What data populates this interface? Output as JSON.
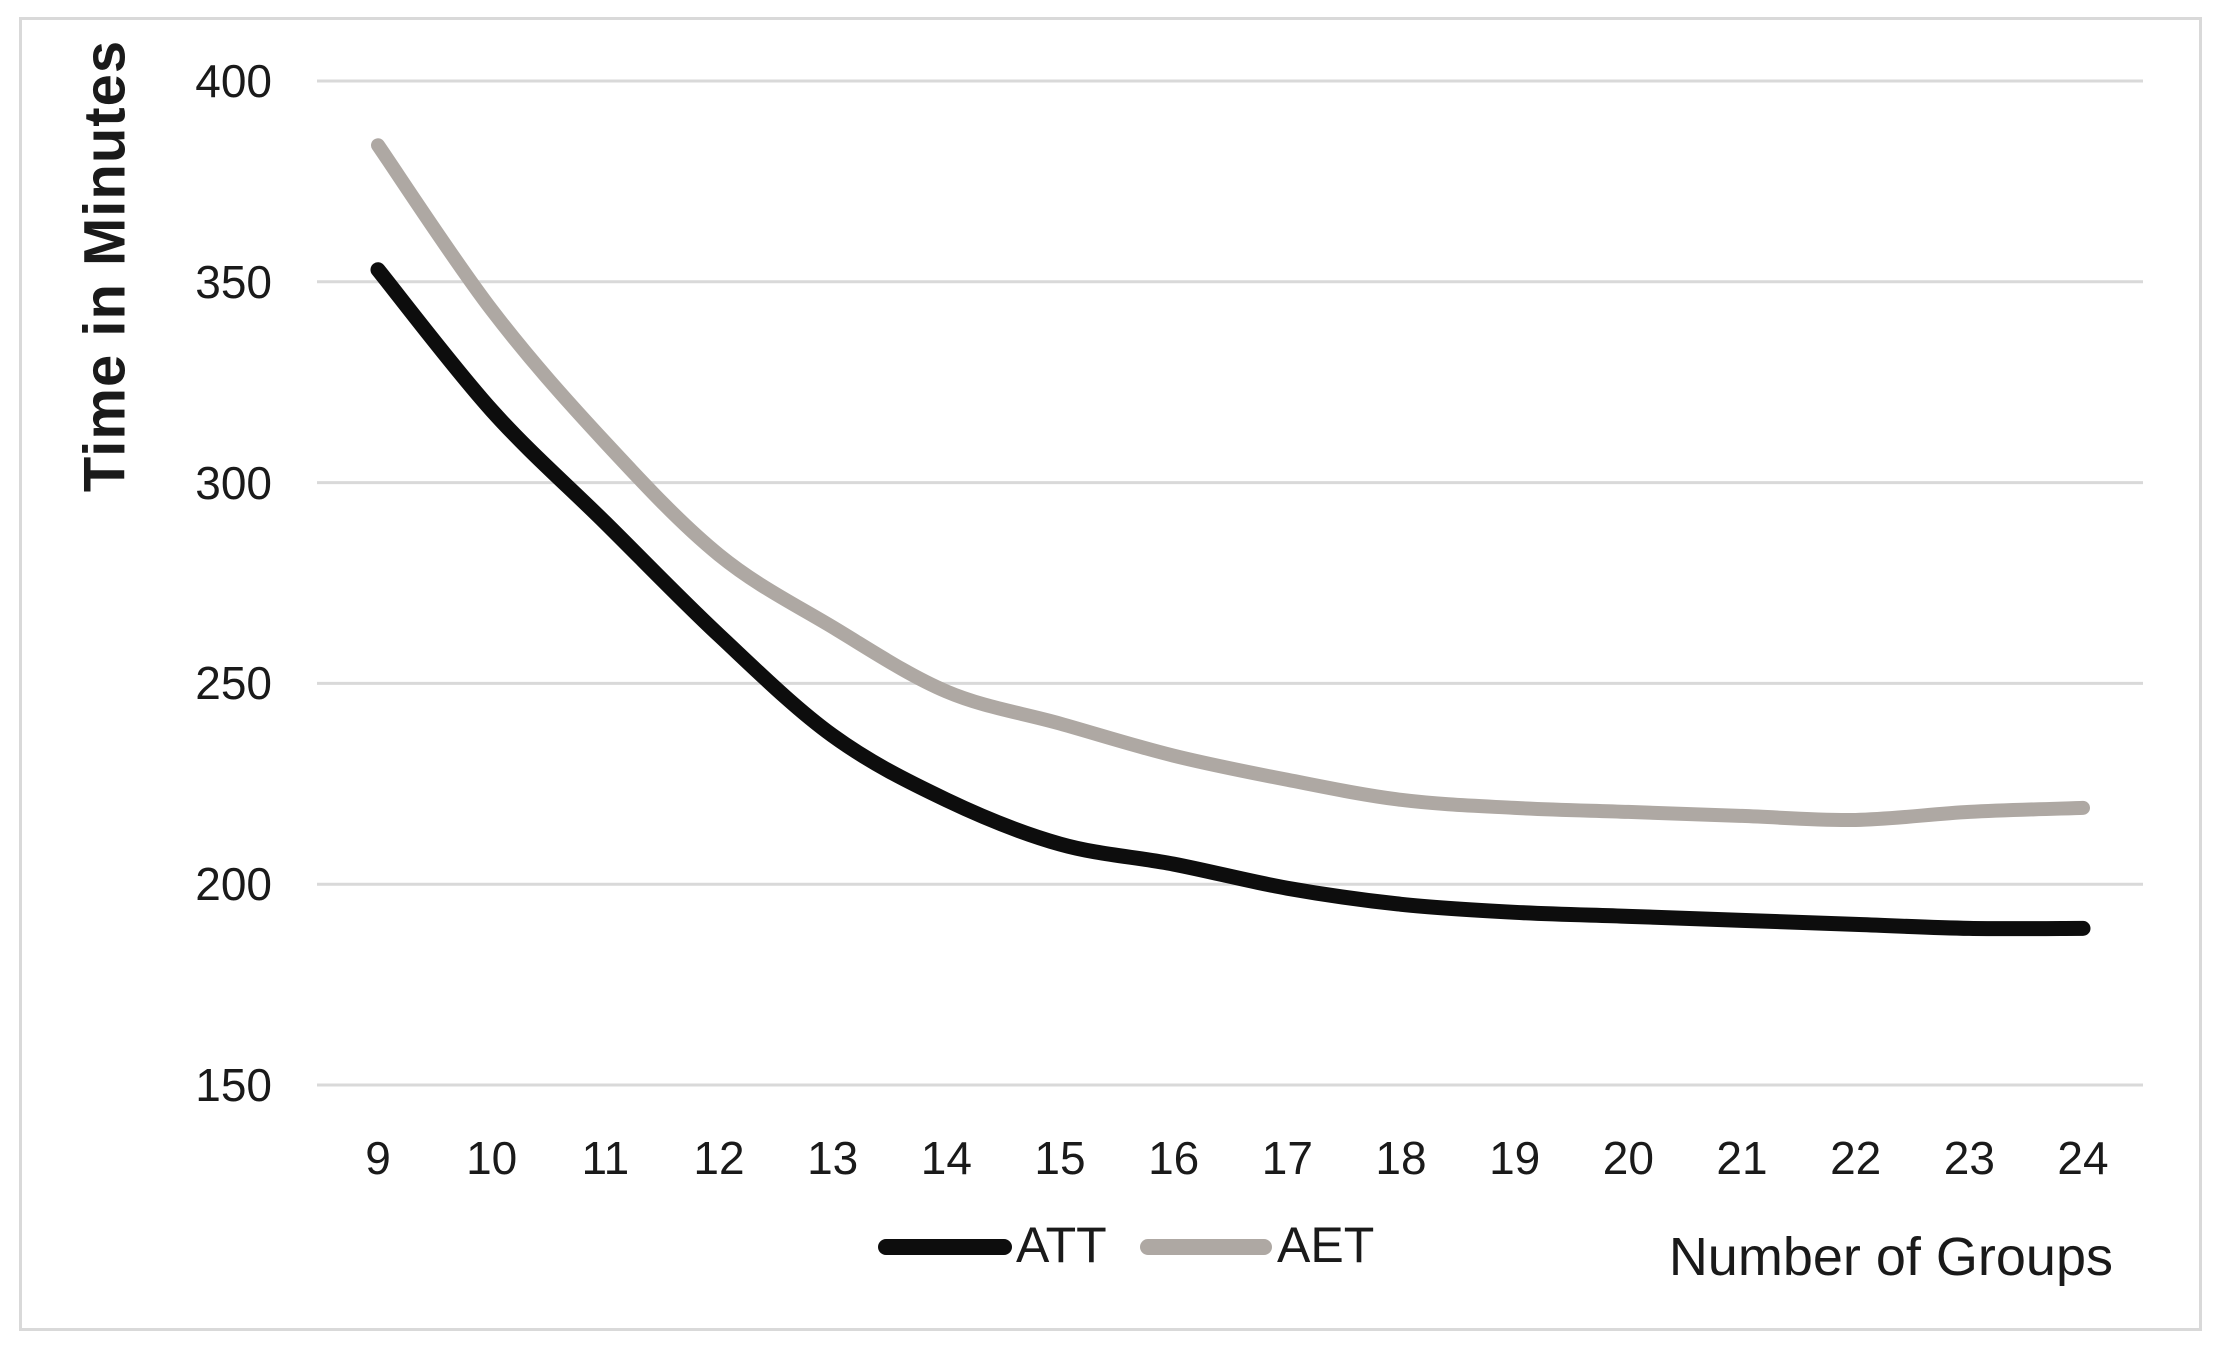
{
  "chart_data": {
    "type": "line",
    "title": "",
    "xlabel": "Number of Groups",
    "ylabel": "Time in Minutes",
    "x": [
      9,
      10,
      11,
      12,
      13,
      14,
      15,
      16,
      17,
      18,
      19,
      20,
      21,
      22,
      23,
      24
    ],
    "series": [
      {
        "name": "ATT",
        "color": "#0d0d0d",
        "stroke_width": 15,
        "values": [
          353,
          318,
          290,
          262,
          237,
          221,
          210,
          205,
          199,
          195,
          193,
          192,
          191,
          190,
          189,
          189
        ]
      },
      {
        "name": "AET",
        "color": "#aea8a3",
        "stroke_width": 14,
        "values": [
          384,
          343,
          310,
          282,
          264,
          248,
          240,
          232,
          226,
          221,
          219,
          218,
          217,
          216,
          218,
          219
        ]
      }
    ],
    "ylim": [
      150,
      400
    ],
    "yticks": [
      400,
      350,
      300,
      250,
      200,
      150
    ],
    "xticks": [
      9,
      10,
      11,
      12,
      13,
      14,
      15,
      16,
      17,
      18,
      19,
      20,
      21,
      22,
      23,
      24
    ],
    "grid": "horizontal",
    "gridline_color": "#d9d9d9",
    "legend_position": "bottom-center",
    "legend": [
      "ATT",
      "AET"
    ]
  },
  "colors": {
    "background": "#ffffff",
    "figure_border": "#d9d9d9",
    "text": "#1a1a1a",
    "att_line": "#0d0d0d",
    "aet_line": "#aea8a3"
  }
}
